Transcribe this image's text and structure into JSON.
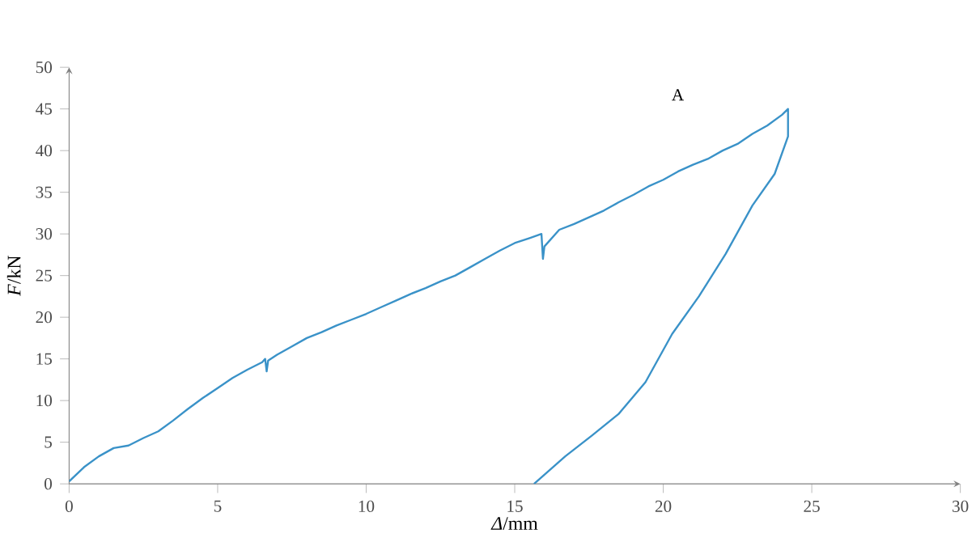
{
  "chart_data": {
    "type": "line",
    "xlabel": "*Δ*/mm",
    "ylabel": "*F*/kN",
    "xlim": [
      0,
      30
    ],
    "ylim": [
      0,
      50
    ],
    "xticks": [
      0,
      5,
      10,
      15,
      20,
      25,
      30
    ],
    "yticks": [
      0,
      5,
      10,
      15,
      20,
      25,
      30,
      35,
      40,
      45,
      50
    ],
    "grid": false,
    "marker": "none",
    "line_style": "solid",
    "annotations": [
      "A"
    ],
    "series": [
      {
        "color": "#3a92c8",
        "x": [
          0,
          0.5,
          1,
          1.5,
          2,
          2.5,
          3,
          3.5,
          4,
          4.5,
          5,
          5.5,
          6,
          6.5,
          6.6,
          6.65,
          6.7,
          7,
          7.5,
          8,
          8.5,
          9,
          9.5,
          10,
          10.5,
          11,
          11.5,
          12,
          12.5,
          13,
          13.5,
          14,
          14.5,
          15,
          15.5,
          15.9,
          15.95,
          16,
          16.5,
          17,
          17.5,
          18,
          18.5,
          19,
          19.5,
          20,
          20.5,
          21,
          21.5,
          22,
          22.5,
          23,
          23.5,
          24,
          24.2,
          24.2,
          23.75,
          23.0,
          22.1,
          21.2,
          20.3,
          19.4,
          18.5,
          17.6,
          16.7,
          15.65
        ],
        "values": [
          0.3,
          2,
          3.3,
          4.3,
          4.6,
          5.5,
          6.3,
          7.6,
          9,
          10.3,
          11.5,
          12.7,
          13.7,
          14.6,
          15,
          13.5,
          14.8,
          15.5,
          16.5,
          17.5,
          18.2,
          19,
          19.7,
          20.4,
          21.2,
          22,
          22.8,
          23.5,
          24.3,
          25,
          26,
          27,
          28,
          28.9,
          29.5,
          30,
          27,
          28.5,
          30.5,
          31.2,
          32,
          32.8,
          33.8,
          34.7,
          35.7,
          36.5,
          37.5,
          38.3,
          39,
          40,
          40.8,
          42,
          43,
          44.3,
          45,
          41.7,
          37.2,
          33.4,
          27.6,
          22.5,
          18,
          12.2,
          8.4,
          5.8,
          3.3,
          0
        ]
      }
    ]
  }
}
